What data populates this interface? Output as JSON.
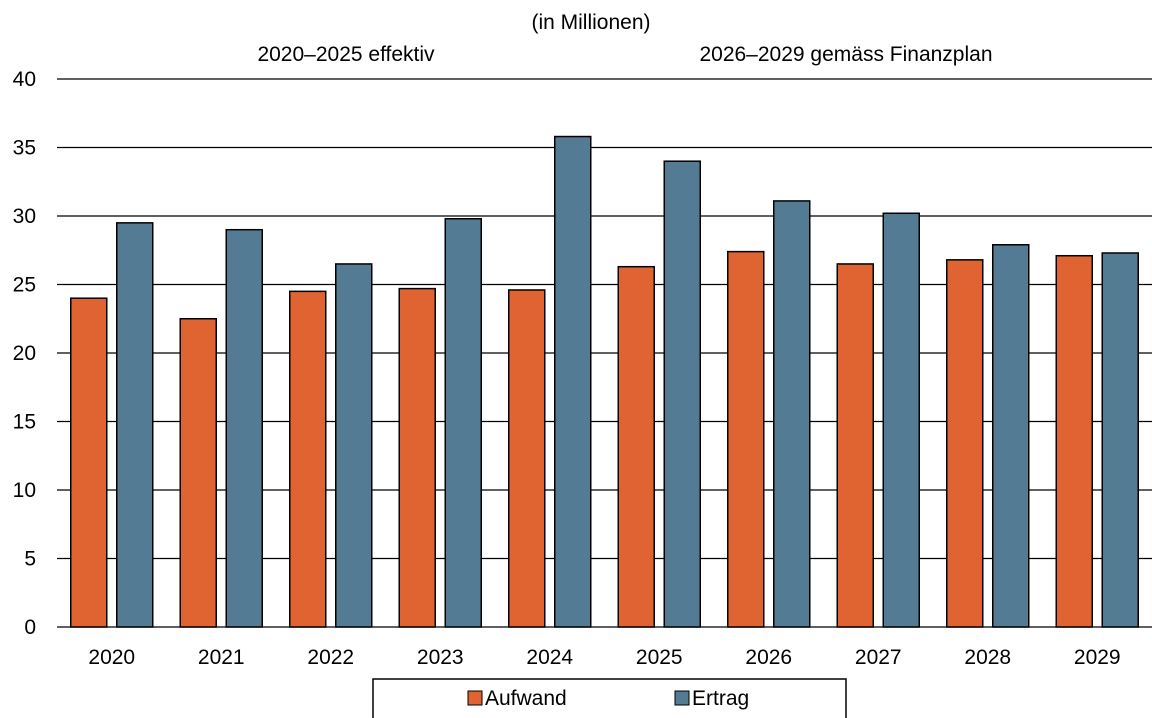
{
  "chart_data": {
    "type": "bar",
    "subtitle": "(in Millionen)",
    "annotations": [
      "2020–2025 effektiv",
      "2026–2029 gemäss Finanzplan"
    ],
    "categories": [
      "2020",
      "2021",
      "2022",
      "2023",
      "2024",
      "2025",
      "2026",
      "2027",
      "2028",
      "2029"
    ],
    "series": [
      {
        "name": "Aufwand",
        "color": "#E06432",
        "values": [
          24.0,
          22.5,
          24.5,
          24.7,
          24.6,
          26.3,
          27.4,
          26.5,
          26.8,
          27.1
        ]
      },
      {
        "name": "Ertrag",
        "color": "#547B94",
        "values": [
          29.5,
          29.0,
          26.5,
          29.8,
          35.8,
          34.0,
          31.1,
          30.2,
          27.9,
          27.3
        ]
      }
    ],
    "yticks": [
      "0",
      "5",
      "10",
      "15",
      "20",
      "25",
      "30",
      "35",
      "40"
    ],
    "ylim": [
      0,
      40
    ],
    "grid": true,
    "legend": "bottom-center"
  }
}
